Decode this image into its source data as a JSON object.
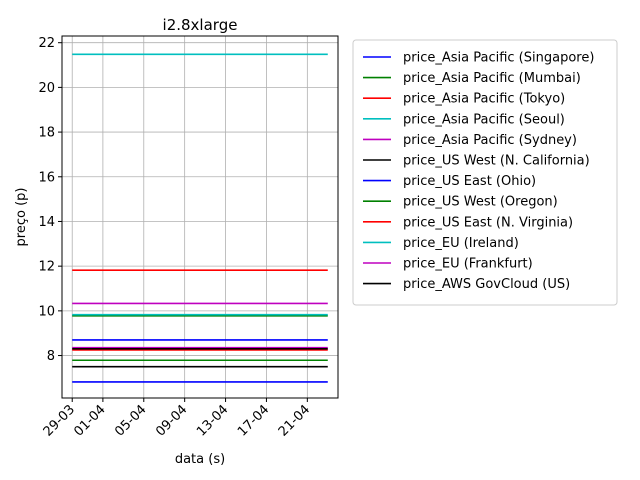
{
  "chart_data": {
    "type": "line",
    "title": "i2.8xlarge",
    "xlabel": "data (s)",
    "ylabel": "preço (p)",
    "x_ticks": [
      "29-03",
      "01-04",
      "05-04",
      "09-04",
      "13-04",
      "17-04",
      "21-04"
    ],
    "x_tick_days": [
      0,
      3,
      7,
      11,
      15,
      19,
      23
    ],
    "x_range_days": [
      -1,
      26
    ],
    "series_x_days": [
      0,
      25
    ],
    "ylim": [
      6.1,
      22.3
    ],
    "y_ticks": [
      8,
      10,
      12,
      14,
      16,
      18,
      20,
      22
    ],
    "grid": true,
    "legend_position": "outside-right",
    "series": [
      {
        "name": "price_Asia Pacific (Singapore)",
        "color": "#0000ff",
        "values": [
          6.82,
          6.82
        ]
      },
      {
        "name": "price_Asia Pacific (Mumbai)",
        "color": "#008000",
        "values": [
          7.79,
          7.79
        ]
      },
      {
        "name": "price_Asia Pacific (Tokyo)",
        "color": "#ff0000",
        "values": [
          11.82,
          11.82
        ]
      },
      {
        "name": "price_Asia Pacific (Seoul)",
        "color": "#00bfbf",
        "values": [
          21.48,
          21.48
        ]
      },
      {
        "name": "price_Asia Pacific (Sydney)",
        "color": "#bf00bf",
        "values": [
          10.33,
          10.33
        ]
      },
      {
        "name": "price_US West (N. California)",
        "color": "#000000",
        "values": [
          7.5,
          7.5
        ]
      },
      {
        "name": "price_US East (Ohio)",
        "color": "#0000ff",
        "values": [
          8.7,
          8.7
        ]
      },
      {
        "name": "price_US West (Oregon)",
        "color": "#008000",
        "values": [
          9.78,
          9.78
        ]
      },
      {
        "name": "price_US East (N. Virginia)",
        "color": "#ff0000",
        "values": [
          8.25,
          8.25
        ]
      },
      {
        "name": "price_EU (Ireland)",
        "color": "#00bfbf",
        "values": [
          9.83,
          9.83
        ]
      },
      {
        "name": "price_EU (Frankfurt)",
        "color": "#bf00bf",
        "values": [
          8.35,
          8.35
        ]
      },
      {
        "name": "price_AWS GovCloud (US)",
        "color": "#000000",
        "values": [
          8.3,
          8.3
        ]
      }
    ]
  }
}
